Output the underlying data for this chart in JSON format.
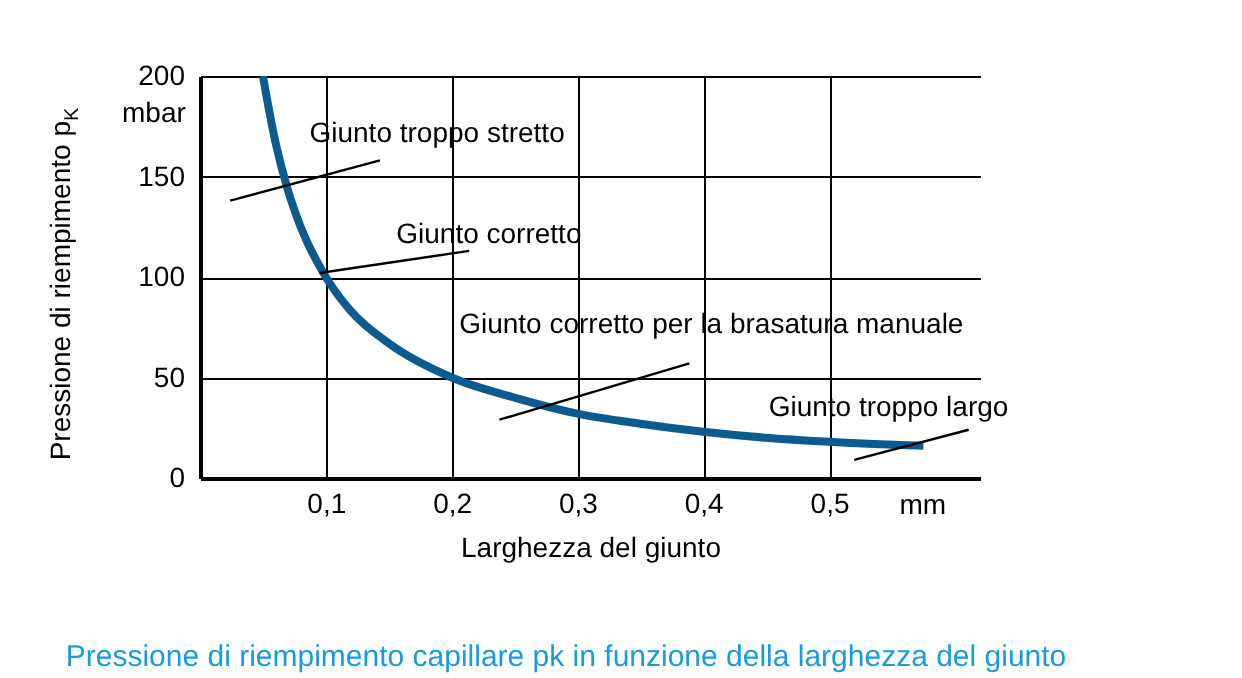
{
  "chart_data": {
    "type": "line",
    "title": "Pressione di riempimento capillare pk in funzione della larghezza del giunto",
    "xlabel": "Larghezza del giunto",
    "ylabel": "Pressione di riempimento p$_{K}$",
    "x": [
      0.05,
      0.06,
      0.07,
      0.08,
      0.1,
      0.12,
      0.15,
      0.2,
      0.25,
      0.3,
      0.35,
      0.4,
      0.45,
      0.5,
      0.575
    ],
    "series": [
      {
        "color": "#0d5a8e",
        "values": [
          200,
          167,
          143,
          125,
          100,
          83,
          67,
          50,
          40,
          32,
          27,
          23,
          20,
          18,
          16
        ]
      }
    ],
    "xlim": [
      0,
      0.62
    ],
    "ylim": [
      0,
      200
    ],
    "xticks": [
      {
        "value": 0.1,
        "label": "0,1"
      },
      {
        "value": 0.2,
        "label": "0,2"
      },
      {
        "value": 0.3,
        "label": "0,3"
      },
      {
        "value": 0.4,
        "label": "0,4"
      },
      {
        "value": 0.5,
        "label": "0,5"
      }
    ],
    "yticks": [
      0,
      50,
      100,
      150,
      200
    ],
    "grid": true,
    "annotations": [
      "Giunto troppo stretto",
      {
        "text": "Giunto corretto",
        "x": 0.095,
        "y": 102
      },
      "Giunto corretto per la brasatura manuale",
      "Giunto troppo largo",
      "mm",
      "mbar"
    ]
  }
}
